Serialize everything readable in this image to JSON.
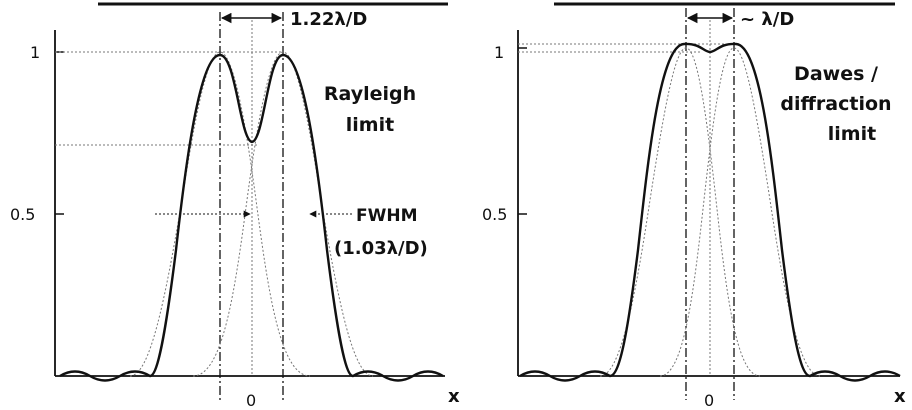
{
  "left_panel": {
    "spacing_label": "1.22λ/D",
    "y_tick_1": "1",
    "y_tick_half": "0.5",
    "x_origin": "0",
    "x_axis_label": "x",
    "criterion_line1": "Rayleigh",
    "criterion_line2": "limit",
    "fwhm_label": "FWHM",
    "fwhm_value": "(1.03λ/D)"
  },
  "right_panel": {
    "spacing_label": "~ λ/D",
    "y_tick_1": "1",
    "y_tick_half": "0.5",
    "x_origin": "0",
    "x_axis_label": "x",
    "criterion_line1": "Dawes /",
    "criterion_line2": "diffraction",
    "criterion_line3": "limit"
  }
}
